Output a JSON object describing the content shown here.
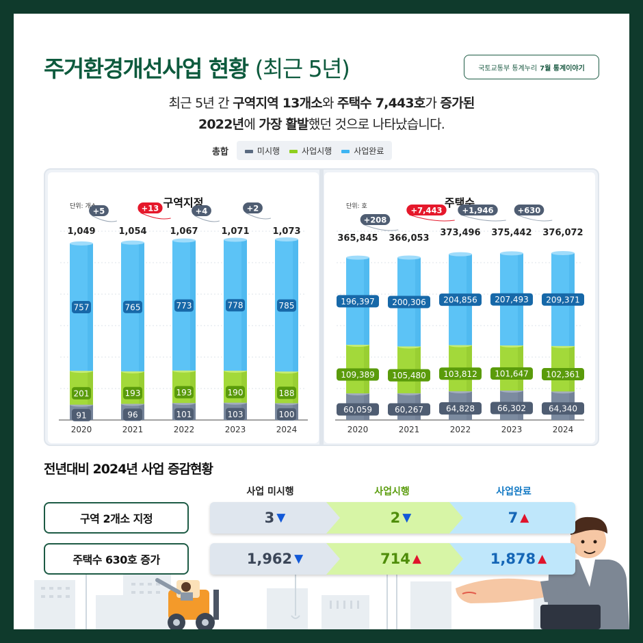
{
  "header": {
    "title": "주거환경개선사업 현황",
    "title_paren": "(최근 5년)",
    "source_prefix": "국토교통부 통계누리",
    "source_bold": "7월 통계이야기"
  },
  "subtitle": {
    "l1_a": "최근 5년 간 ",
    "l1_b": "구역지역 13개소",
    "l1_c": "와 ",
    "l1_d": "주택수 7,443호",
    "l1_e": "가 ",
    "l1_f": "증가된",
    "l2_a": "2022년",
    "l2_b": "에 ",
    "l2_c": "가장 활발",
    "l2_d": "했던 것으로 나타났습니다."
  },
  "legend": {
    "title": "총합",
    "items": [
      {
        "label": "미시행",
        "color": "#5a6a80"
      },
      {
        "label": "사업시행",
        "color": "#8fcf1e"
      },
      {
        "label": "사업완료",
        "color": "#3db4f2"
      }
    ]
  },
  "chart_data": [
    {
      "type": "bar",
      "stacked": true,
      "title": "구역지정",
      "unit_label": "단위: 개소",
      "categories": [
        "2020",
        "2021",
        "2022",
        "2023",
        "2024"
      ],
      "series": [
        {
          "name": "미시행",
          "values": [
            91,
            96,
            101,
            103,
            100
          ]
        },
        {
          "name": "사업시행",
          "values": [
            201,
            193,
            193,
            190,
            188
          ]
        },
        {
          "name": "사업완료",
          "values": [
            757,
            765,
            773,
            778,
            785
          ]
        }
      ],
      "totals": [
        "1,049",
        "1,054",
        "1,067",
        "1,071",
        "1,073"
      ],
      "changes": [
        "+5",
        "+13",
        "+4",
        "+2"
      ],
      "highlight_change_index": 1,
      "grid": true
    },
    {
      "type": "bar",
      "stacked": true,
      "title": "주택수",
      "unit_label": "단위: 호",
      "categories": [
        "2020",
        "2021",
        "2022",
        "2023",
        "2024"
      ],
      "series": [
        {
          "name": "미시행",
          "values": [
            60059,
            60267,
            64828,
            66302,
            64340
          ]
        },
        {
          "name": "사업시행",
          "values": [
            109389,
            105480,
            103812,
            101647,
            102361
          ]
        },
        {
          "name": "사업완료",
          "values": [
            196397,
            200306,
            204856,
            207493,
            209371
          ]
        }
      ],
      "totals": [
        "365,845",
        "366,053",
        "373,496",
        "375,442",
        "376,072"
      ],
      "changes": [
        "+208",
        "+7,443",
        "+1,946",
        "+630"
      ],
      "highlight_change_index": 1,
      "grid": true
    }
  ],
  "comparison": {
    "title": "전년대비 2024년 사업 증감현황",
    "columns": [
      "사업 미시행",
      "사업시행",
      "사업완료"
    ],
    "rows": [
      {
        "label": "구역 2개소 지정",
        "values": [
          "3",
          "2",
          "7"
        ],
        "dirs": [
          "down",
          "down",
          "up"
        ]
      },
      {
        "label": "주택수 630호 증가",
        "values": [
          "1,962",
          "714",
          "1,878"
        ],
        "dirs": [
          "down",
          "up",
          "up"
        ]
      }
    ]
  },
  "colors": {
    "dark_green": "#0d5a3d",
    "gray_bar": "#7c8ba0",
    "green_bar": "#a3d93a",
    "blue_bar": "#5cc3f6",
    "red_badge": "#e5182b",
    "gray_badge": "#4f5d72"
  }
}
